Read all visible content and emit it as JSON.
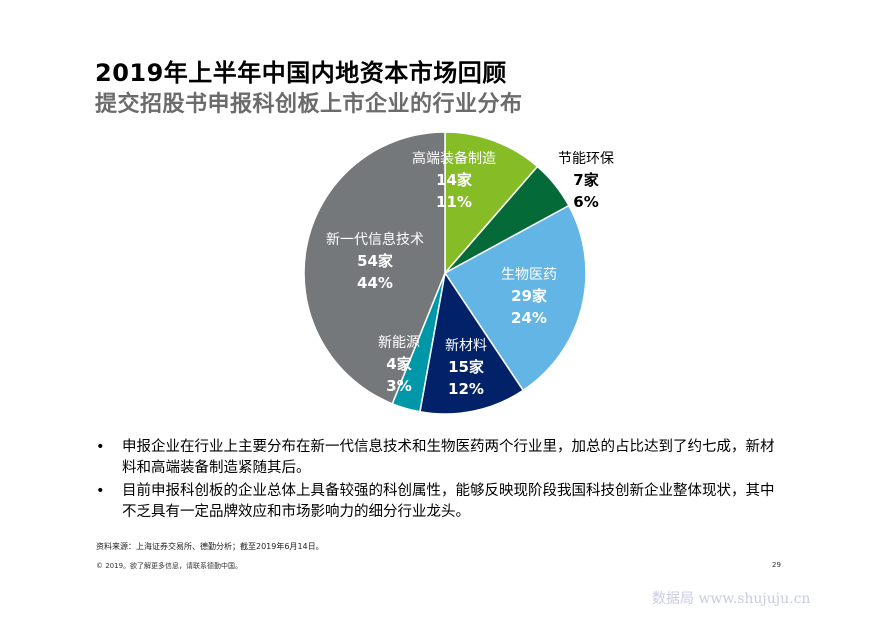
{
  "header": {
    "title": "2019年上半年中国内地资本市场回顾",
    "subtitle": "提交招股书申报科创板上市企业的行业分布"
  },
  "chart_data": {
    "type": "pie",
    "title": "",
    "slices": [
      {
        "label": "高端装备制造",
        "count": "14家",
        "pct": "11%",
        "value": 14,
        "color": "#86bc25",
        "text_color": "#ffffff"
      },
      {
        "label": "节能环保",
        "count": "7家",
        "pct": "6%",
        "value": 7,
        "color": "#046a38",
        "text_color": "#000000"
      },
      {
        "label": "生物医药",
        "count": "29家",
        "pct": "24%",
        "value": 29,
        "color": "#62b5e5",
        "text_color": "#ffffff"
      },
      {
        "label": "新材料",
        "count": "15家",
        "pct": "12%",
        "value": 15,
        "color": "#012169",
        "text_color": "#ffffff"
      },
      {
        "label": "新能源",
        "count": "4家",
        "pct": "3%",
        "value": 4,
        "color": "#0097a9",
        "text_color": "#ffffff"
      },
      {
        "label": "新一代信息技术",
        "count": "54家",
        "pct": "44%",
        "value": 54,
        "color": "#75787b",
        "text_color": "#ffffff"
      }
    ]
  },
  "bullets": [
    "申报企业在行业上主要分布在新一代信息技术和生物医药两个行业里，加总的占比达到了约七成，新材料和高端装备制造紧随其后。",
    "目前申报科创板的企业总体上具备较强的科创属性，能够反映现阶段我国科技创新企业整体现状，其中不乏具有一定品牌效应和市场影响力的细分行业龙头。"
  ],
  "bullet_symbol": "•",
  "footer": {
    "source": "资料来源：上海证券交易所、德勤分析；截至2019年6月14日。",
    "copyright": "© 2019。欲了解更多信息，请联系德勤中国。",
    "page": "29"
  },
  "watermark": "数据局 www.shujuju.cn"
}
